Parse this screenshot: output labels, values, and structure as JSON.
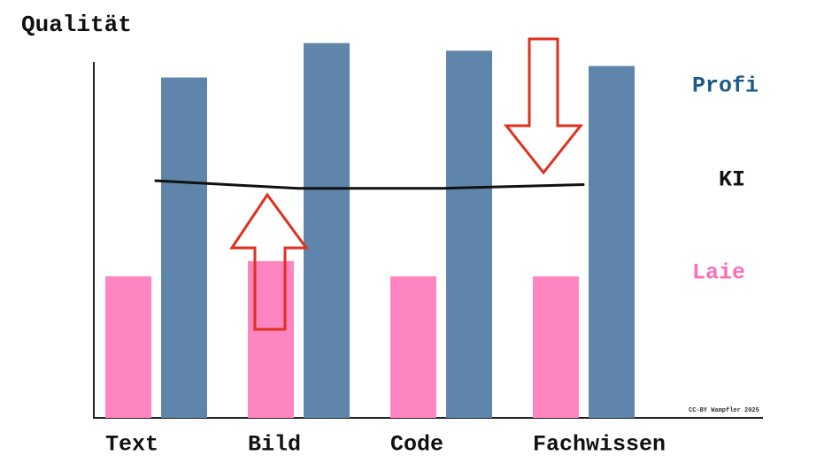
{
  "chart_data": {
    "type": "bar",
    "y_label": "Qualität",
    "categories": [
      "Text",
      "Bild",
      "Code",
      "Fachwissen"
    ],
    "series": [
      {
        "name": "Laie",
        "color": "#ff85c0",
        "values": [
          37,
          41,
          37,
          37
        ]
      },
      {
        "name": "Profi",
        "color": "#5f85aa",
        "values": [
          89,
          98,
          96,
          92
        ]
      },
      {
        "name": "KI",
        "color": "#111111",
        "type": "line",
        "values": [
          62,
          60,
          60,
          61
        ]
      }
    ],
    "ylim": [
      0,
      100
    ],
    "annotation": "CC-BY Wampfler 2025"
  }
}
